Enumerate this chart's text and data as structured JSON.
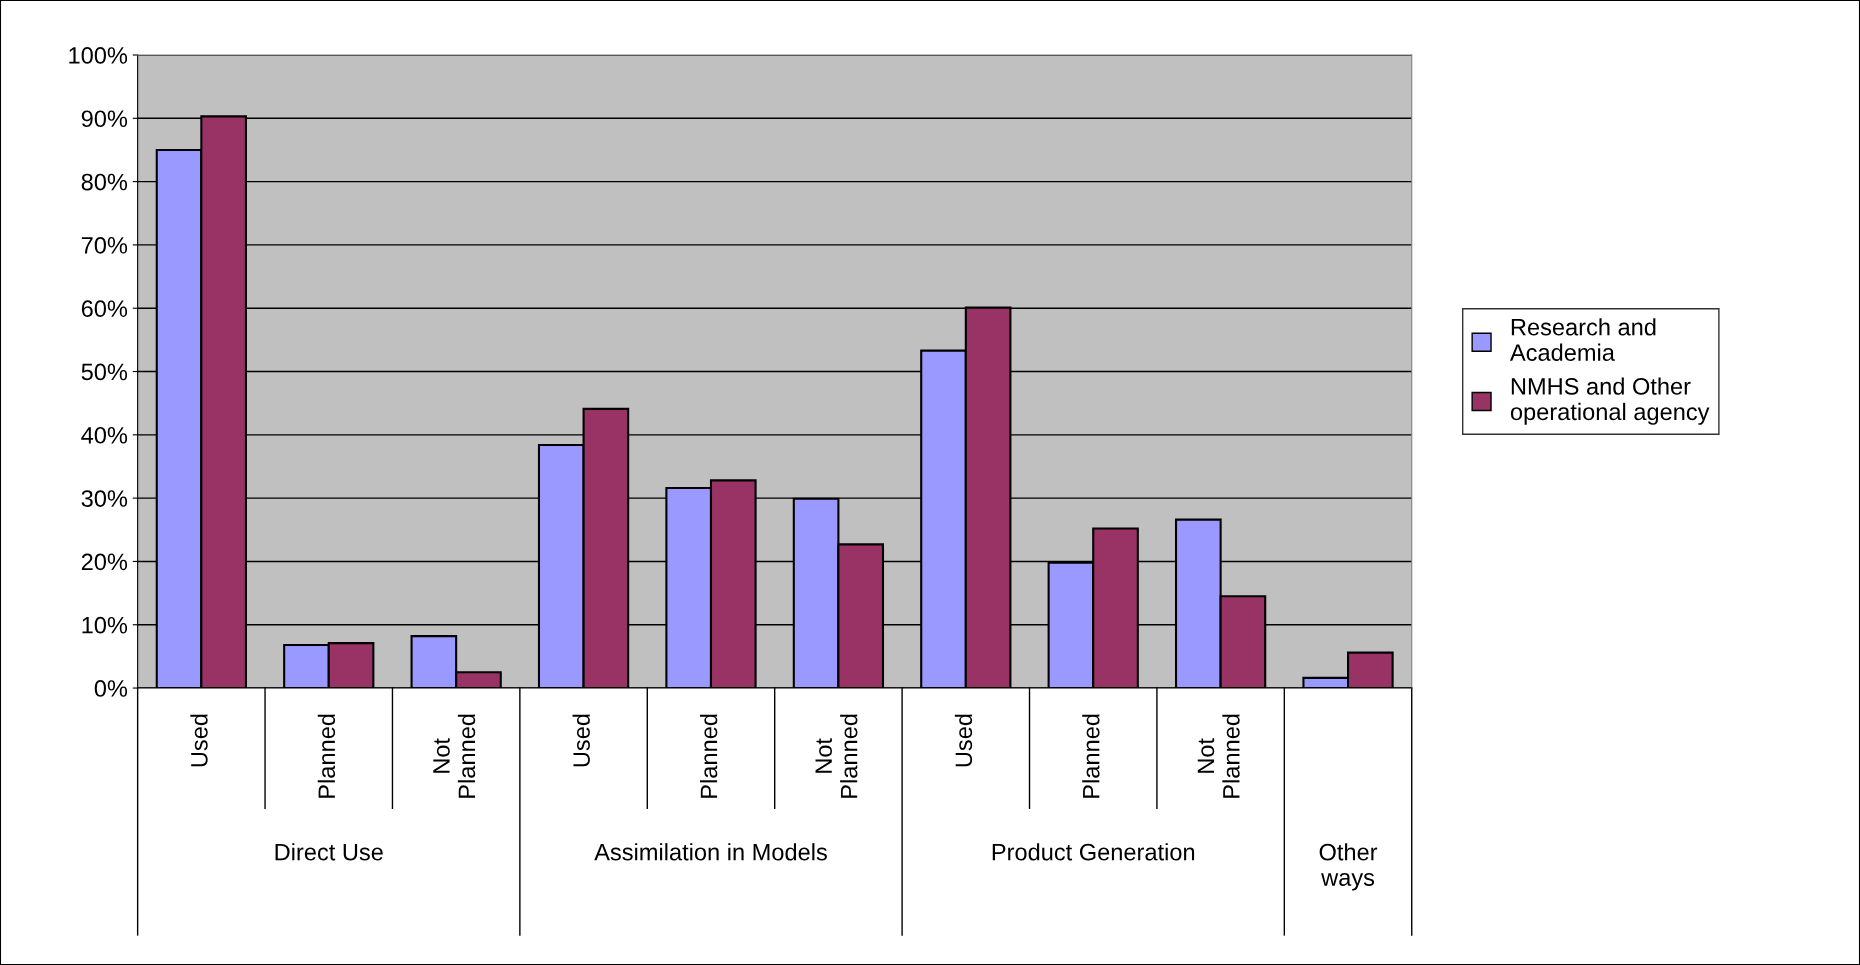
{
  "chart_data": {
    "type": "bar",
    "categories": [
      "Used",
      "Planned",
      "Not\nPlanned",
      "Used",
      "Planned",
      "Not\nPlanned",
      "Used",
      "Planned",
      "Not\nPlanned",
      null
    ],
    "series": [
      {
        "name": "Research and\nAcademia",
        "color": "#9999ff",
        "values": [
          85,
          6.8,
          8.2,
          38.4,
          31.6,
          29.9,
          53.3,
          19.8,
          26.6,
          1.6
        ]
      },
      {
        "name": "NMHS and Other\noperational agency",
        "color": "#993366",
        "values": [
          90.3,
          7.1,
          2.5,
          44.1,
          32.8,
          22.7,
          60.1,
          25.2,
          14.5,
          5.6
        ]
      }
    ],
    "annotations": [
      "Direct Use",
      "Assimilation in Models",
      "Product Generation",
      "Other\nways"
    ],
    "ylim": [
      0,
      100
    ],
    "yticks": [
      {
        "value": 0,
        "label": "0%"
      },
      {
        "value": 10,
        "label": "10%"
      },
      {
        "value": 20,
        "label": "20%"
      },
      {
        "value": 30,
        "label": "30%"
      },
      {
        "value": 40,
        "label": "40%"
      },
      {
        "value": 50,
        "label": "50%"
      },
      {
        "value": 60,
        "label": "60%"
      },
      {
        "value": 70,
        "label": "70%"
      },
      {
        "value": 80,
        "label": "80%"
      },
      {
        "value": 90,
        "label": "90%"
      },
      {
        "value": 100,
        "label": "100%"
      }
    ],
    "grid": "y",
    "legend": "right"
  }
}
